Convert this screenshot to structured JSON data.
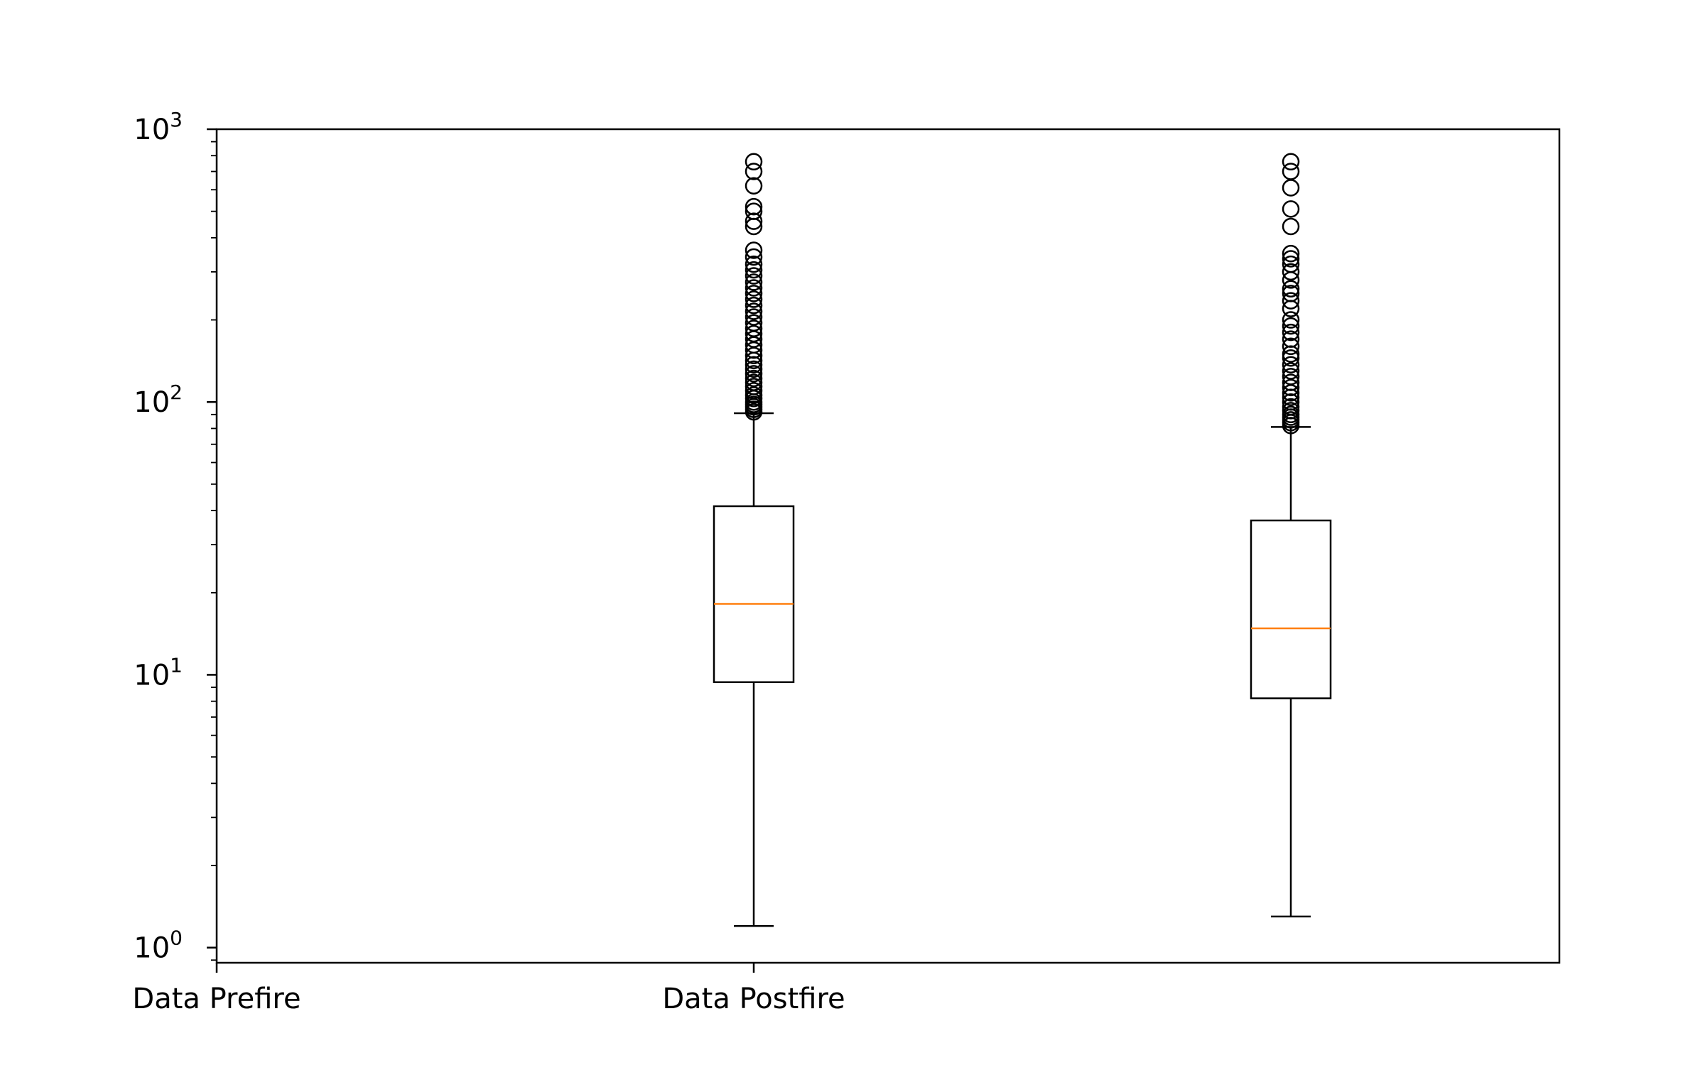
{
  "chart_data": {
    "type": "box",
    "yscale": "log",
    "ylim": [
      0.88,
      1000
    ],
    "xlim": [
      1,
      3.5
    ],
    "y_major_ticks": [
      {
        "value": 1,
        "base": "10",
        "exp": "0"
      },
      {
        "value": 10,
        "base": "10",
        "exp": "1"
      },
      {
        "value": 100,
        "base": "10",
        "exp": "2"
      },
      {
        "value": 1000,
        "base": "10",
        "exp": "3"
      }
    ],
    "x_ticks": [
      {
        "position": 1,
        "label": "Data Prefire"
      },
      {
        "position": 2,
        "label": "Data Postfire"
      }
    ],
    "series": [
      {
        "position": 2,
        "whisker_low": 1.2,
        "q1": 9.4,
        "median": 18.2,
        "q3": 41.5,
        "whisker_high": 91,
        "outliers": [
          92,
          94,
          96,
          98,
          100,
          103,
          106,
          110,
          114,
          118,
          122,
          127,
          132,
          137,
          142,
          148,
          155,
          162,
          170,
          178,
          186,
          195,
          205,
          215,
          226,
          238,
          250,
          262,
          275,
          290,
          305,
          320,
          340,
          360,
          440,
          460,
          500,
          520,
          620,
          700,
          760
        ]
      },
      {
        "position": 3,
        "whisker_low": 1.3,
        "q1": 8.2,
        "median": 14.8,
        "q3": 36.8,
        "whisker_high": 81,
        "outliers": [
          82,
          84,
          86,
          88,
          90,
          93,
          96,
          100,
          104,
          108,
          113,
          118,
          124,
          130,
          137,
          145,
          150,
          160,
          170,
          180,
          190,
          200,
          220,
          235,
          250,
          260,
          280,
          300,
          320,
          335,
          350,
          440,
          510,
          610,
          700,
          760
        ]
      }
    ],
    "colors": {
      "box": "#000000",
      "median": "#ff7f0e",
      "axes": "#000000"
    },
    "grid": false
  }
}
